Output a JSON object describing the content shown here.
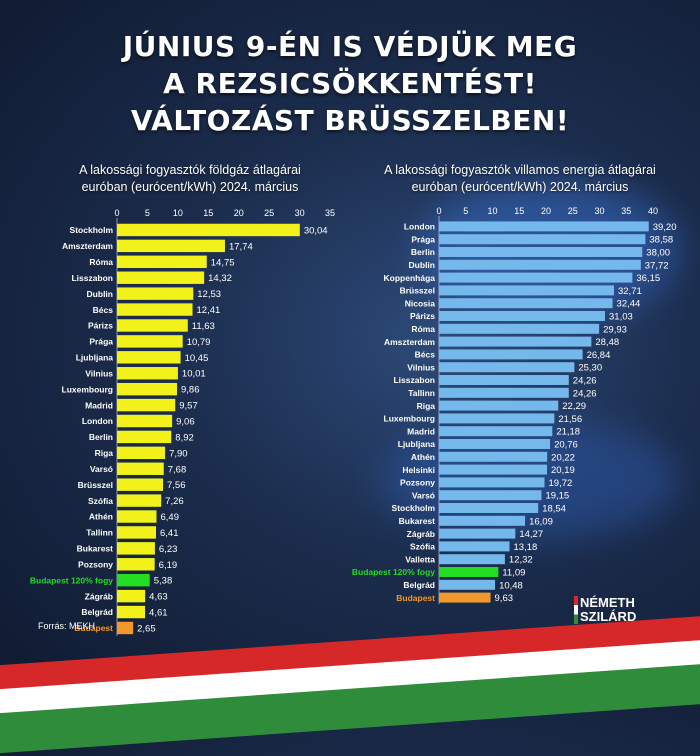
{
  "headline": [
    "JÚNIUS 9-ÉN IS VÉDJÜK MEG",
    "A REZSICSÖKKENTÉST!",
    "VÁLTOZÁST BRÜSSZELBEN!"
  ],
  "source": "Forrás: MEKH",
  "brand": {
    "line1": "NÉMETH",
    "line2": "SZILÁRD"
  },
  "colors": {
    "gas_bar": "#f2f21a",
    "electric_bar": "#74b8ec",
    "highlight": "#22dd22",
    "budapest": "#f0982a",
    "flag_red": "#d62828",
    "flag_white": "#ffffff",
    "flag_green": "#2f8c3a"
  },
  "chart_data": [
    {
      "type": "bar",
      "orientation": "horizontal",
      "title": "A lakossági fogyasztók földgáz átlagárai",
      "subtitle": "euróban (eurócent/kWh) 2024. március",
      "xlim": [
        0,
        35
      ],
      "xticks": [
        0,
        5,
        10,
        15,
        20,
        25,
        30,
        35
      ],
      "categories": [
        "Stockholm",
        "Amszterdam",
        "Róma",
        "Lisszabon",
        "Dublin",
        "Bécs",
        "Párizs",
        "Prága",
        "Ljubljana",
        "Vilnius",
        "Luxembourg",
        "Madrid",
        "London",
        "Berlin",
        "Riga",
        "Varsó",
        "Brüsszel",
        "Szófia",
        "Athén",
        "Tallinn",
        "Bukarest",
        "Pozsony",
        "Budapest 120% fogy",
        "Zágráb",
        "Belgrád",
        "Budapest"
      ],
      "values": [
        30.04,
        17.74,
        14.75,
        14.32,
        12.53,
        12.41,
        11.63,
        10.79,
        10.45,
        10.01,
        9.86,
        9.57,
        9.06,
        8.92,
        7.9,
        7.68,
        7.56,
        7.26,
        6.49,
        6.41,
        6.23,
        6.19,
        5.38,
        4.63,
        4.61,
        2.65
      ],
      "labels": [
        "30,04",
        "17,74",
        "14,75",
        "14,32",
        "12,53",
        "12,41",
        "11,63",
        "10,79",
        "10,45",
        "10,01",
        "9,86",
        "9,57",
        "9,06",
        "8,92",
        "7,90",
        "7,68",
        "7,56",
        "7,26",
        "6,49",
        "6,41",
        "6,23",
        "6,19",
        "5,38",
        "4,63",
        "4,61",
        "2,65"
      ],
      "highlight": {
        "Budapest 120% fogy": "green",
        "Budapest": "orange"
      }
    },
    {
      "type": "bar",
      "orientation": "horizontal",
      "title": "A lakossági fogyasztók villamos energia átlagárai",
      "subtitle": "euróban (eurócent/kWh) 2024. március",
      "xlim": [
        0,
        40
      ],
      "xticks": [
        0,
        5,
        10,
        15,
        20,
        25,
        30,
        35,
        40
      ],
      "categories": [
        "London",
        "Prága",
        "Berlin",
        "Dublin",
        "Koppenhága",
        "Brüsszel",
        "Nicosia",
        "Párizs",
        "Róma",
        "Amszterdam",
        "Bécs",
        "Vilnius",
        "Lisszabon",
        "Tallinn",
        "Riga",
        "Luxembourg",
        "Madrid",
        "Ljubljana",
        "Athén",
        "Helsinki",
        "Pozsony",
        "Varsó",
        "Stockholm",
        "Bukarest",
        "Zágráb",
        "Szófia",
        "Valletta",
        "Budapest 120% fogy",
        "Belgrád",
        "Budapest"
      ],
      "values": [
        39.2,
        38.58,
        38.0,
        37.72,
        36.15,
        32.71,
        32.44,
        31.03,
        29.93,
        28.48,
        26.84,
        25.3,
        24.26,
        24.26,
        22.29,
        21.56,
        21.18,
        20.76,
        20.22,
        20.19,
        19.72,
        19.15,
        18.54,
        16.09,
        14.27,
        13.18,
        12.32,
        11.09,
        10.48,
        9.63
      ],
      "labels": [
        "39,20",
        "38,58",
        "38,00",
        "37,72",
        "36,15",
        "32,71",
        "32,44",
        "31,03",
        "29,93",
        "28,48",
        "26,84",
        "25,30",
        "24,26",
        "24,26",
        "22,29",
        "21,56",
        "21,18",
        "20,76",
        "20,22",
        "20,19",
        "19,72",
        "19,15",
        "18,54",
        "16,09",
        "14,27",
        "13,18",
        "12,32",
        "11,09",
        "10,48",
        "9,63"
      ],
      "highlight": {
        "Budapest 120% fogy": "green",
        "Budapest": "orange"
      }
    }
  ]
}
